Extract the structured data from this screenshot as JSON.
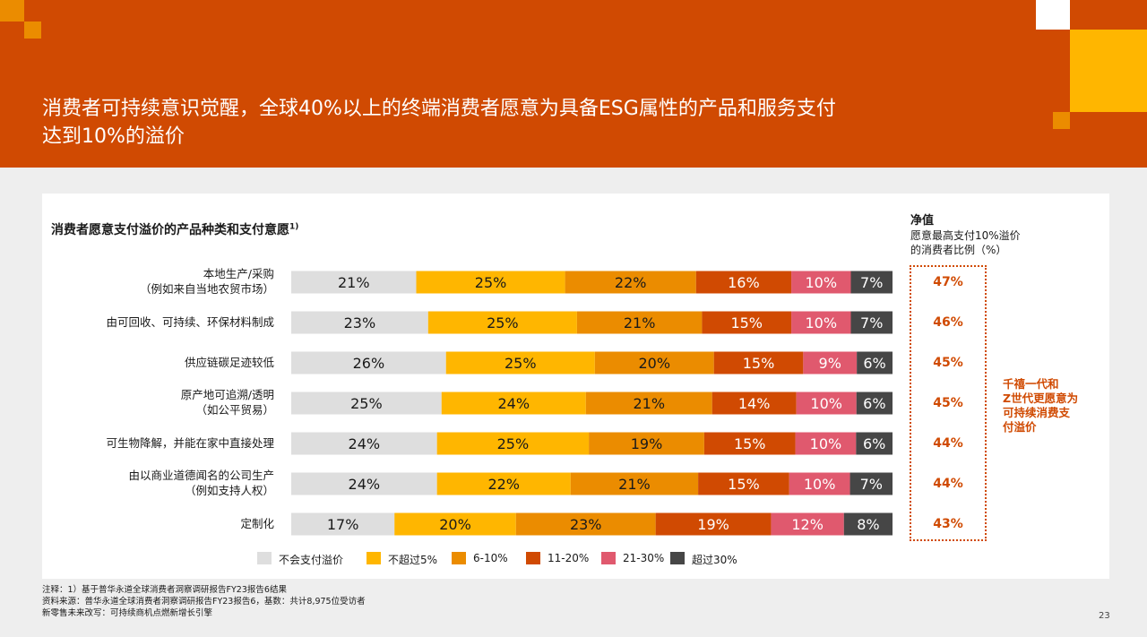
{
  "header": {
    "title_line1": "消费者可持续意识觉醒，全球40%以上的终端消费者愿意为具备ESG属性的产品和服务支付",
    "title_line2": "达到10%的溢价"
  },
  "chart_data": {
    "type": "bar",
    "stacked": "horizontal-100%",
    "title": "消费者愿意支付溢价的产品种类和支付意愿",
    "title_sup": "1)",
    "categories": [
      [
        "本地生产/采购",
        "（例如来自当地农贸市场）"
      ],
      [
        "由可回收、可持续、环保材料制成"
      ],
      [
        "供应链碳足迹较低"
      ],
      [
        "原产地可追溯/透明",
        "（如公平贸易）"
      ],
      [
        "可生物降解，并能在家中直接处理"
      ],
      [
        "由以商业道德闻名的公司生产",
        "（例如支持人权）"
      ],
      [
        "定制化"
      ]
    ],
    "series": [
      {
        "name": "不会支付溢价",
        "color": "#dedede",
        "text_color": "#1a1a1a",
        "values": [
          21,
          23,
          26,
          25,
          24,
          24,
          17
        ]
      },
      {
        "name": "不超过5%",
        "color": "#ffb600",
        "text_color": "#1a1a1a",
        "values": [
          25,
          25,
          25,
          24,
          25,
          22,
          20
        ]
      },
      {
        "name": "6-10%",
        "color": "#eb8c00",
        "text_color": "#1a1a1a",
        "values": [
          22,
          21,
          20,
          21,
          19,
          21,
          23
        ]
      },
      {
        "name": "11-20%",
        "color": "#d04a02",
        "text_color": "#ffffff",
        "values": [
          16,
          15,
          15,
          14,
          15,
          15,
          19
        ]
      },
      {
        "name": "21-30%",
        "color": "#e0596e",
        "text_color": "#ffffff",
        "values": [
          10,
          10,
          9,
          10,
          10,
          10,
          12
        ]
      },
      {
        "name": "超过30%",
        "color": "#464646",
        "text_color": "#ffffff",
        "values": [
          7,
          7,
          6,
          6,
          6,
          7,
          8
        ]
      }
    ],
    "value_suffix": "%",
    "net": {
      "heading": "净值",
      "subheading_line1": "愿意最高支付10%溢价",
      "subheading_line2": "的消费者比例（%）",
      "values": [
        "47%",
        "46%",
        "45%",
        "45%",
        "44%",
        "44%",
        "43%"
      ]
    },
    "legend_position": "bottom"
  },
  "side_note": {
    "line1": "千禧一代和",
    "line2": "Z世代更愿意为",
    "line3": "可持续消费支",
    "line4": "付溢价"
  },
  "footer": {
    "note1": "注释：1）基于普华永道全球消费者洞察调研报告FY23报告6结果",
    "note2": "资料来源：普华永道全球消费者洞察调研报告FY23报告6，基数：共计8,975位受访者",
    "note3": "新零售未来改写：可持续商机点燃新增长引擎",
    "page_number": "23"
  },
  "colors": {
    "brand_orange": "#d04a02",
    "accent_yellow": "#ffb600",
    "accent_amber": "#eb8c00"
  }
}
